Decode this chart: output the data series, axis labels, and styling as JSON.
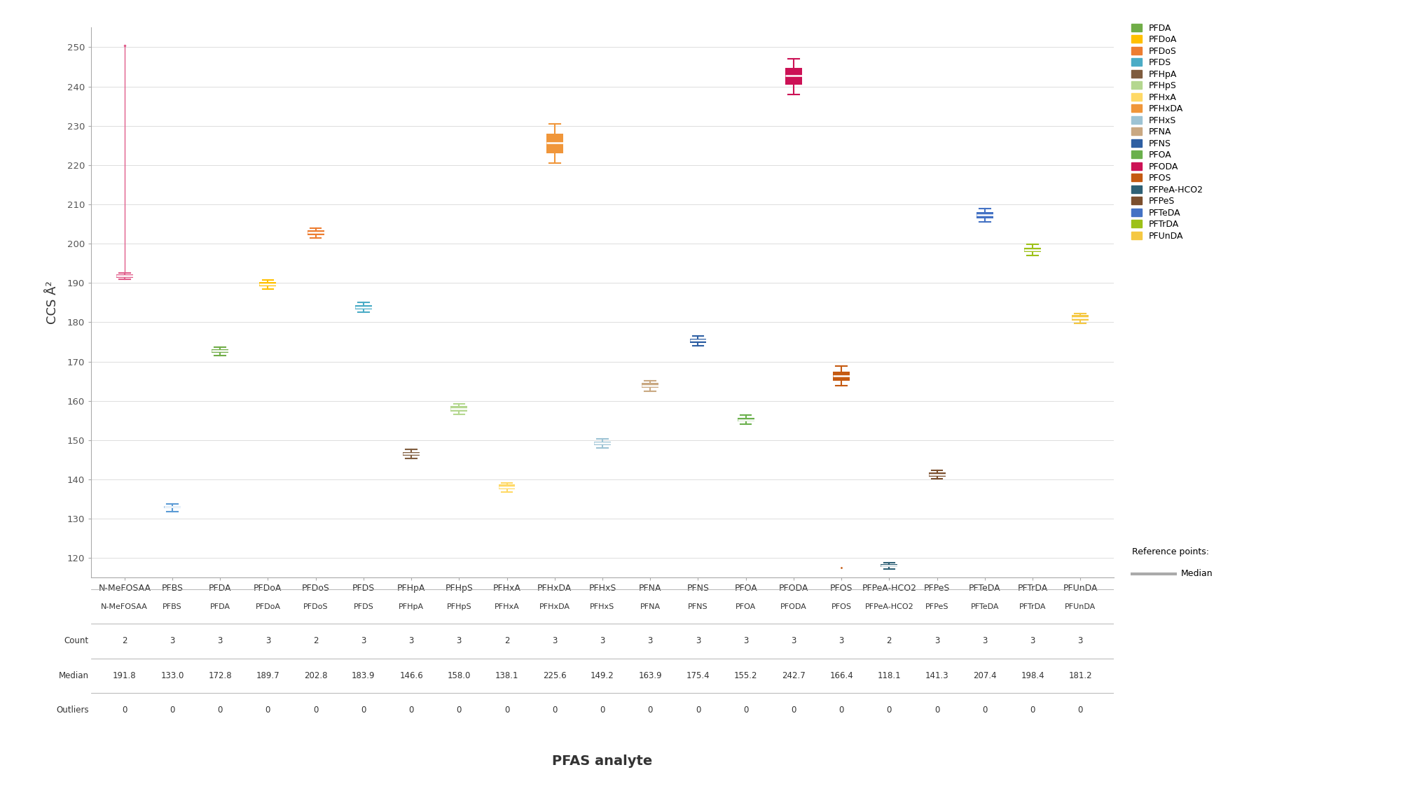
{
  "analytes": [
    "N-MeFOSAA",
    "PFBS",
    "PFDA",
    "PFDoA",
    "PFDoS",
    "PFDS",
    "PFHpA",
    "PFHpS",
    "PFHxA",
    "PFHxDA",
    "PFHxS",
    "PFNA",
    "PFNS",
    "PFOA",
    "PFODA",
    "PFOS",
    "PFPeA-HCO2",
    "PFPeS",
    "PFTeDA",
    "PFTrDA",
    "PFUnDA"
  ],
  "counts": [
    2,
    3,
    3,
    3,
    2,
    3,
    3,
    3,
    2,
    3,
    3,
    3,
    3,
    3,
    3,
    3,
    2,
    3,
    3,
    3,
    3
  ],
  "medians": [
    191.8,
    133.0,
    172.8,
    189.7,
    202.8,
    183.9,
    146.6,
    158.0,
    138.1,
    225.6,
    149.2,
    163.9,
    175.4,
    155.2,
    242.7,
    166.4,
    118.1,
    141.3,
    207.4,
    198.4,
    181.2
  ],
  "outliers_count": [
    0,
    0,
    0,
    0,
    0,
    0,
    0,
    0,
    0,
    0,
    0,
    0,
    0,
    0,
    0,
    0,
    0,
    0,
    0,
    0,
    0
  ],
  "colors": {
    "N-MeFOSAA": "#e05c8a",
    "PFBS": "#5b9bd5",
    "PFDA": "#70ad47",
    "PFDoA": "#ffc000",
    "PFDoS": "#ed7d31",
    "PFDS": "#4bacc6",
    "PFHpA": "#7f5c3e",
    "PFHpS": "#b4d78f",
    "PFHxA": "#ffd966",
    "PFHxDA": "#f0963a",
    "PFHxS": "#9dc3d4",
    "PFNA": "#c9a882",
    "PFNS": "#2e5fa3",
    "PFOA": "#6ab04c",
    "PFODA": "#cc1155",
    "PFOS": "#c55a11",
    "PFPeA-HCO2": "#2e6075",
    "PFPeS": "#7b4f2e",
    "PFTeDA": "#4472c4",
    "PFTrDA": "#9dc118",
    "PFUnDA": "#f5c842"
  },
  "box_data": {
    "N-MeFOSAA": {
      "q1": 191.3,
      "q3": 192.2,
      "whislo": 191.0,
      "whishi": 192.5,
      "med": 191.8
    },
    "PFBS": {
      "q1": 132.7,
      "q3": 133.3,
      "whislo": 131.8,
      "whishi": 133.8,
      "med": 133.0
    },
    "PFDA": {
      "q1": 172.2,
      "q3": 173.2,
      "whislo": 171.5,
      "whishi": 173.7,
      "med": 172.8
    },
    "PFDoA": {
      "q1": 189.1,
      "q3": 190.2,
      "whislo": 188.5,
      "whishi": 190.8,
      "med": 189.7
    },
    "PFDoS": {
      "q1": 202.2,
      "q3": 203.4,
      "whislo": 201.5,
      "whishi": 204.0,
      "med": 202.8
    },
    "PFDS": {
      "q1": 183.3,
      "q3": 184.3,
      "whislo": 182.5,
      "whishi": 185.0,
      "med": 183.9
    },
    "PFHpA": {
      "q1": 146.0,
      "q3": 147.0,
      "whislo": 145.3,
      "whishi": 147.7,
      "med": 146.6
    },
    "PFHpS": {
      "q1": 157.3,
      "q3": 158.7,
      "whislo": 156.5,
      "whishi": 159.3,
      "med": 158.0
    },
    "PFHxA": {
      "q1": 137.5,
      "q3": 138.7,
      "whislo": 136.8,
      "whishi": 139.2,
      "med": 138.1
    },
    "PFHxDA": {
      "q1": 223.0,
      "q3": 228.0,
      "whislo": 220.5,
      "whishi": 230.5,
      "med": 225.6
    },
    "PFHxS": {
      "q1": 148.7,
      "q3": 149.7,
      "whislo": 148.0,
      "whishi": 150.4,
      "med": 149.2
    },
    "PFNA": {
      "q1": 163.3,
      "q3": 164.5,
      "whislo": 162.5,
      "whishi": 165.2,
      "med": 163.9
    },
    "PFNS": {
      "q1": 174.8,
      "q3": 175.8,
      "whislo": 174.0,
      "whishi": 176.5,
      "med": 175.4
    },
    "PFOA": {
      "q1": 154.7,
      "q3": 155.7,
      "whislo": 154.0,
      "whishi": 156.4,
      "med": 155.2
    },
    "PFODA": {
      "q1": 240.5,
      "q3": 244.8,
      "whislo": 238.0,
      "whishi": 247.0,
      "med": 242.7
    },
    "PFOS": {
      "q1": 165.2,
      "q3": 167.5,
      "whislo": 163.8,
      "whishi": 168.8,
      "med": 166.4
    },
    "PFPeA-HCO2": {
      "q1": 117.7,
      "q3": 118.5,
      "whislo": 117.2,
      "whishi": 118.9,
      "med": 118.1
    },
    "PFPeS": {
      "q1": 140.8,
      "q3": 141.8,
      "whislo": 140.1,
      "whishi": 142.4,
      "med": 141.3
    },
    "PFTeDA": {
      "q1": 206.5,
      "q3": 208.0,
      "whislo": 205.5,
      "whishi": 209.0,
      "med": 207.4
    },
    "PFTrDA": {
      "q1": 197.8,
      "q3": 199.0,
      "whislo": 197.0,
      "whishi": 199.8,
      "med": 198.4
    },
    "PFUnDA": {
      "q1": 180.5,
      "q3": 181.8,
      "whislo": 179.8,
      "whishi": 182.3,
      "med": 181.2
    }
  },
  "outlier_above": {
    "analyte": "N-MeFOSAA",
    "y": 250.5
  },
  "dot_below": {
    "analyte": "PFOS",
    "y": 117.5
  },
  "ylim": [
    115,
    255
  ],
  "yticks": [
    120,
    130,
    140,
    150,
    160,
    170,
    180,
    190,
    200,
    210,
    220,
    230,
    240,
    250
  ],
  "ylabel": "CCS Å²",
  "xlabel": "PFAS analyte",
  "legend_items_all": [
    "PFDA",
    "PFDoA",
    "PFDoS",
    "PFDS",
    "PFHpA",
    "PFHpS",
    "PFHxA",
    "PFHxDA",
    "PFHxS",
    "PFNA",
    "PFNS",
    "PFOA",
    "PFODA",
    "PFOS",
    "PFPeA-HCO2",
    "PFPeS",
    "PFTeDA",
    "PFTrDA",
    "PFUnDA"
  ],
  "background_color": "#ffffff",
  "box_width": 0.35,
  "cap_ratio": 0.65
}
